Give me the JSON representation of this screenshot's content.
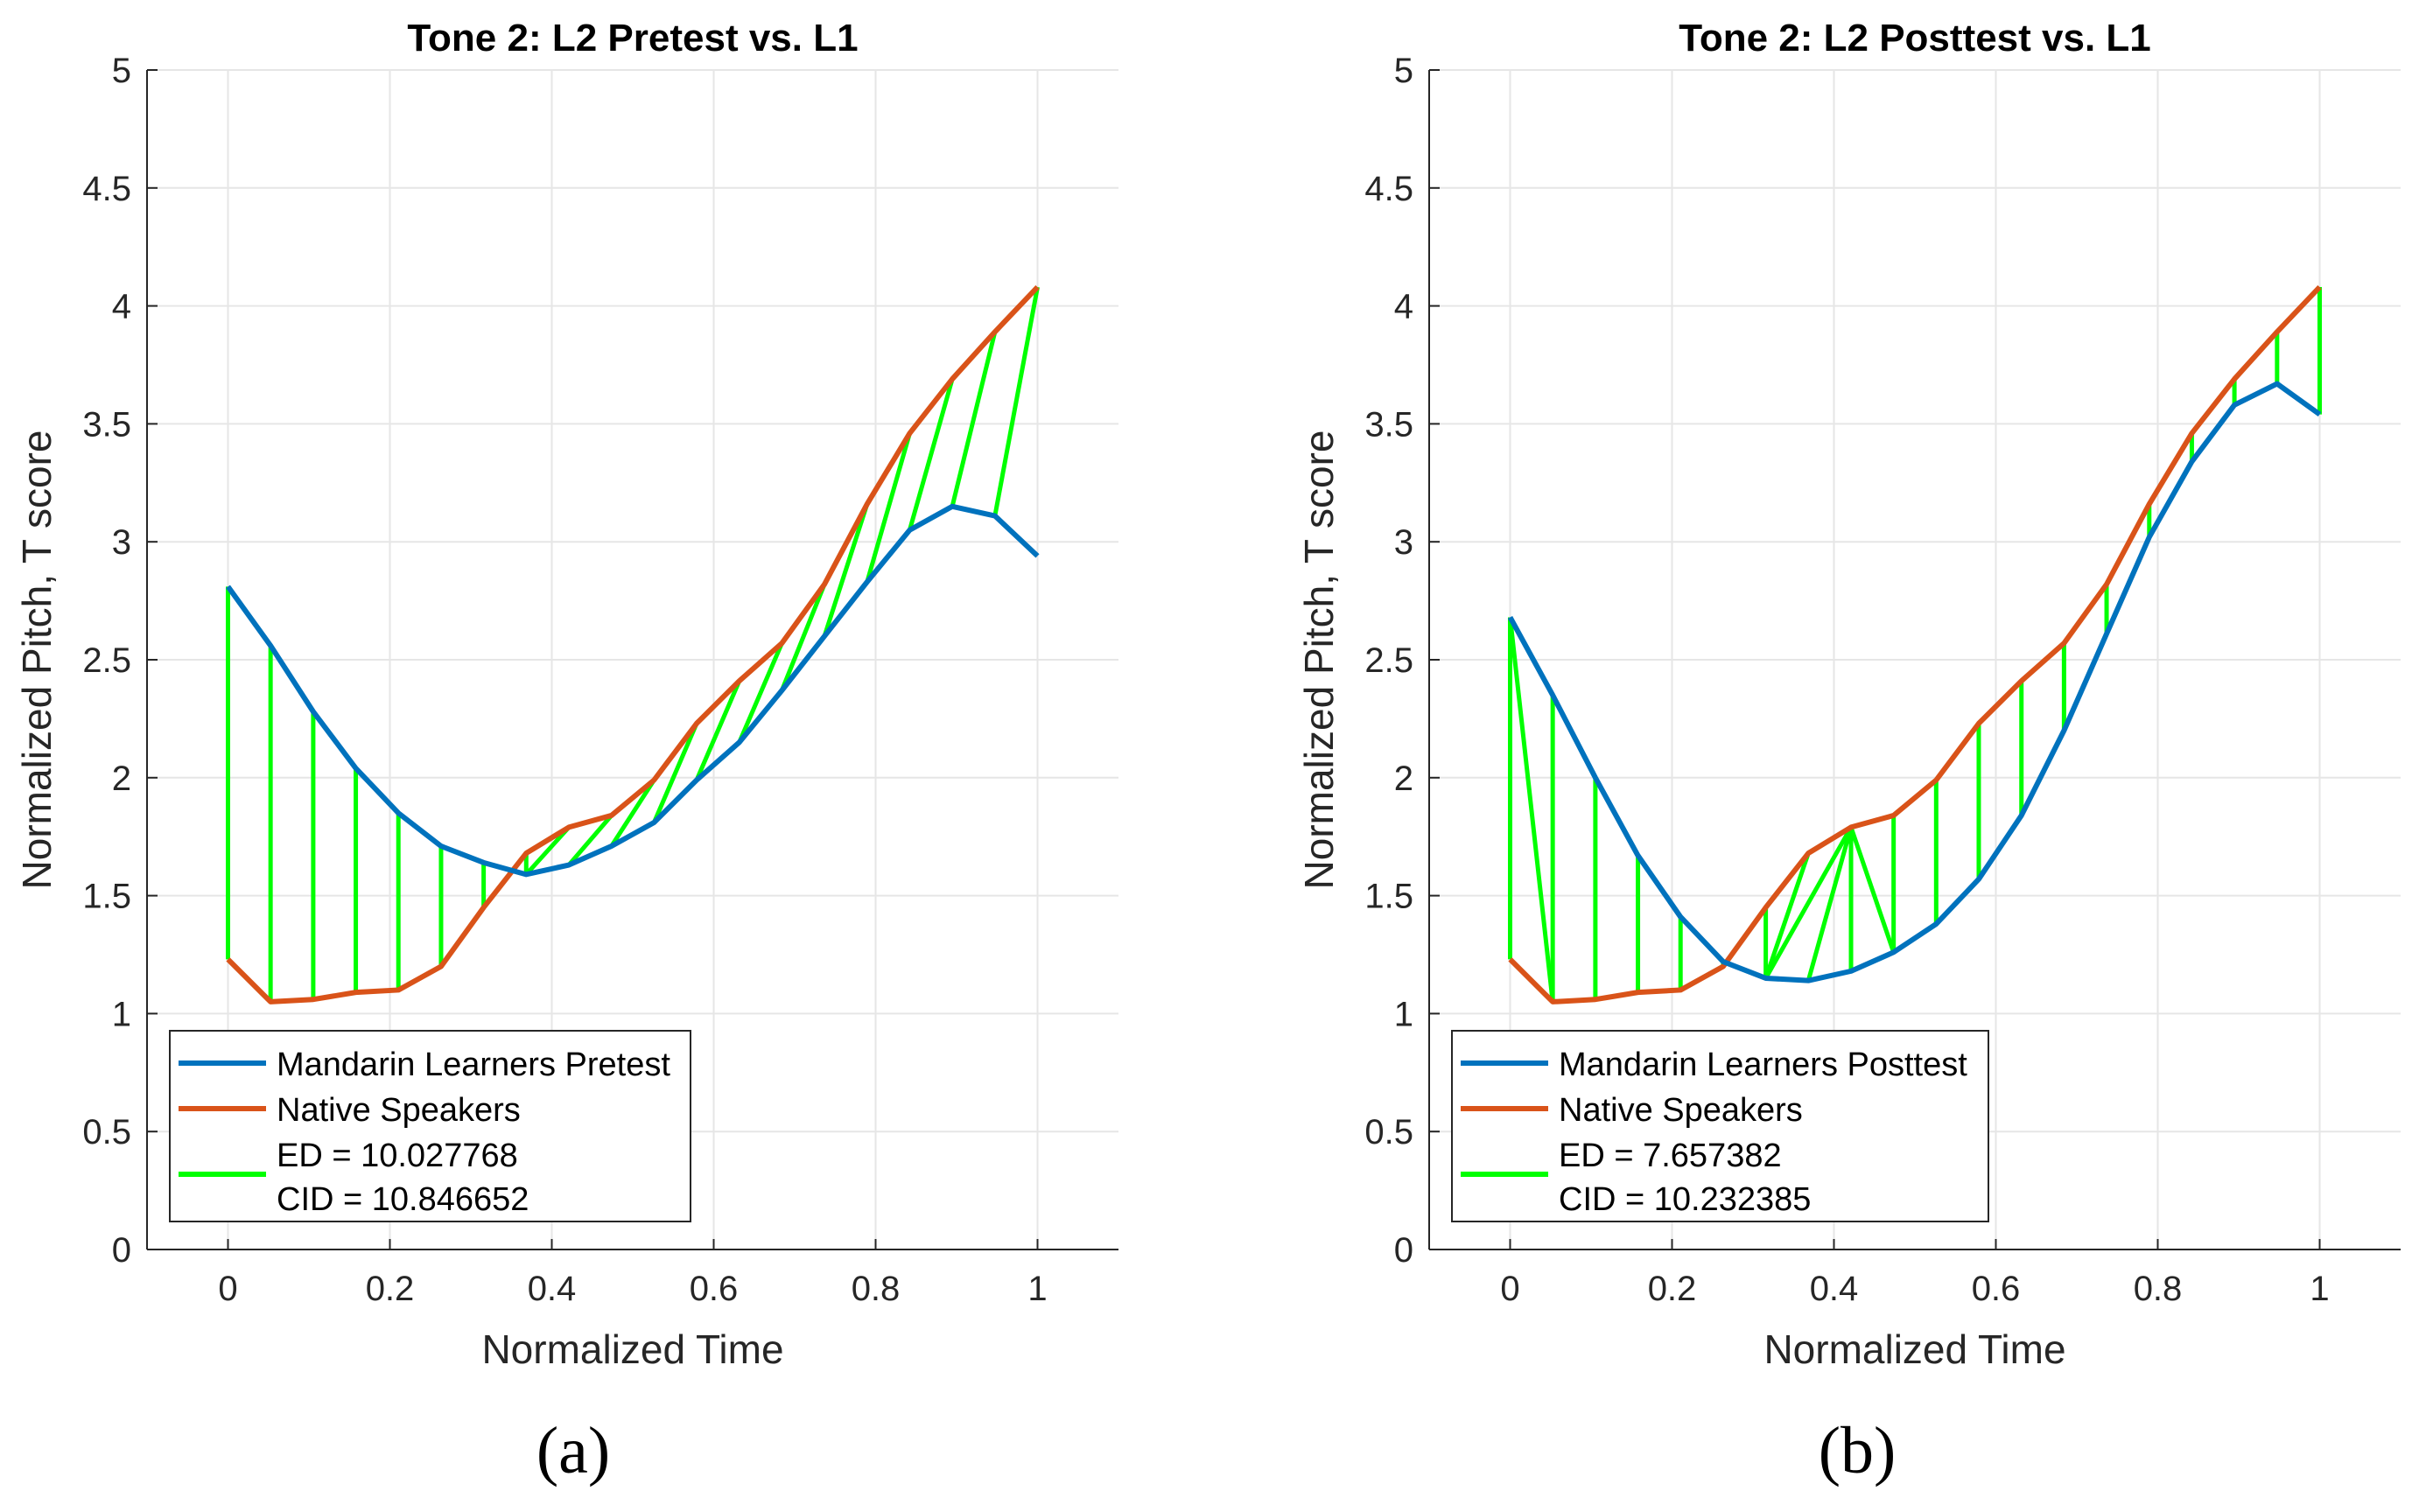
{
  "chart_data": [
    {
      "type": "line",
      "title": "Tone 2: L2 Pretest vs. L1",
      "xlabel": "Normalized Time",
      "ylabel": "Normalized Pitch, T score",
      "xlim": [
        -0.1,
        1.1
      ],
      "ylim": [
        0,
        5
      ],
      "xticks": [
        0,
        0.2,
        0.4,
        0.6,
        0.8,
        1
      ],
      "xtick_labels": [
        "0",
        "0.2",
        "0.4",
        "0.6",
        "0.8",
        "1"
      ],
      "yticks": [
        0,
        0.5,
        1,
        1.5,
        2,
        2.5,
        3,
        3.5,
        4,
        4.5,
        5
      ],
      "ytick_labels": [
        "0",
        "0.5",
        "1",
        "1.5",
        "2",
        "2.5",
        "3",
        "3.5",
        "4",
        "4.5",
        "5"
      ],
      "grid": true,
      "legend_position": "bottom-left",
      "series": [
        {
          "name": "Mandarin Learners Pretest",
          "color": "#0072BD",
          "x": [
            0,
            0.0526,
            0.1053,
            0.1579,
            0.2105,
            0.2632,
            0.3158,
            0.3684,
            0.4211,
            0.4737,
            0.5263,
            0.5789,
            0.6316,
            0.6842,
            0.7368,
            0.7895,
            0.8421,
            0.8947,
            0.9474,
            1
          ],
          "y": [
            2.81,
            2.56,
            2.28,
            2.04,
            1.85,
            1.71,
            1.64,
            1.59,
            1.63,
            1.71,
            1.81,
            1.99,
            2.15,
            2.37,
            2.6,
            2.83,
            3.05,
            3.15,
            3.11,
            2.94
          ]
        },
        {
          "name": "Native Speakers",
          "color": "#D95319",
          "x": [
            0,
            0.0526,
            0.1053,
            0.1579,
            0.2105,
            0.2632,
            0.3158,
            0.3684,
            0.4211,
            0.4737,
            0.5263,
            0.5789,
            0.6316,
            0.6842,
            0.7368,
            0.7895,
            0.8421,
            0.8947,
            0.9474,
            1
          ],
          "y": [
            1.23,
            1.05,
            1.06,
            1.09,
            1.1,
            1.2,
            1.45,
            1.68,
            1.79,
            1.84,
            1.99,
            2.23,
            2.41,
            2.57,
            2.82,
            3.16,
            3.46,
            3.69,
            3.89,
            4.08
          ]
        },
        {
          "name": "ED = 10.027768\nCID = 10.846652",
          "color": "#00FF00",
          "pairs": [
            [
              0,
              0
            ],
            [
              1,
              1
            ],
            [
              2,
              2
            ],
            [
              3,
              3
            ],
            [
              4,
              4
            ],
            [
              5,
              5
            ],
            [
              6,
              6
            ],
            [
              7,
              7
            ],
            [
              7,
              8
            ],
            [
              8,
              9
            ],
            [
              9,
              10
            ],
            [
              10,
              11
            ],
            [
              11,
              12
            ],
            [
              12,
              13
            ],
            [
              13,
              14
            ],
            [
              14,
              15
            ],
            [
              15,
              16
            ],
            [
              16,
              17
            ],
            [
              17,
              18
            ],
            [
              18,
              19
            ]
          ]
        }
      ],
      "legend": [
        "Mandarin Learners Pretest",
        "Native Speakers",
        "ED = 10.027768",
        "CID = 10.846652"
      ]
    },
    {
      "type": "line",
      "title": "Tone 2: L2 Posttest vs. L1",
      "xlabel": "Normalized Time",
      "ylabel": "Normalized Pitch, T score",
      "xlim": [
        -0.1,
        1.1
      ],
      "ylim": [
        0,
        5
      ],
      "xticks": [
        0,
        0.2,
        0.4,
        0.6,
        0.8,
        1
      ],
      "xtick_labels": [
        "0",
        "0.2",
        "0.4",
        "0.6",
        "0.8",
        "1"
      ],
      "yticks": [
        0,
        0.5,
        1,
        1.5,
        2,
        2.5,
        3,
        3.5,
        4,
        4.5,
        5
      ],
      "ytick_labels": [
        "0",
        "0.5",
        "1",
        "1.5",
        "2",
        "2.5",
        "3",
        "3.5",
        "4",
        "4.5",
        "5"
      ],
      "grid": true,
      "legend_position": "bottom-left",
      "series": [
        {
          "name": "Mandarin Learners Posttest",
          "color": "#0072BD",
          "x": [
            0,
            0.0526,
            0.1053,
            0.1579,
            0.2105,
            0.2632,
            0.3158,
            0.3684,
            0.4211,
            0.4737,
            0.5263,
            0.5789,
            0.6316,
            0.6842,
            0.7368,
            0.7895,
            0.8421,
            0.8947,
            0.9474,
            1
          ],
          "y": [
            2.68,
            2.35,
            2.0,
            1.67,
            1.41,
            1.22,
            1.15,
            1.14,
            1.18,
            1.26,
            1.38,
            1.57,
            1.84,
            2.2,
            2.61,
            3.02,
            3.34,
            3.58,
            3.67,
            3.54
          ]
        },
        {
          "name": "Native Speakers",
          "color": "#D95319",
          "x": [
            0,
            0.0526,
            0.1053,
            0.1579,
            0.2105,
            0.2632,
            0.3158,
            0.3684,
            0.4211,
            0.4737,
            0.5263,
            0.5789,
            0.6316,
            0.6842,
            0.7368,
            0.7895,
            0.8421,
            0.8947,
            0.9474,
            1
          ],
          "y": [
            1.23,
            1.05,
            1.06,
            1.09,
            1.1,
            1.2,
            1.45,
            1.68,
            1.79,
            1.84,
            1.99,
            2.23,
            2.41,
            2.57,
            2.82,
            3.16,
            3.46,
            3.69,
            3.89,
            4.08
          ]
        },
        {
          "name": "ED = 7.657382\nCID = 10.232385",
          "color": "#00FF00",
          "pairs": [
            [
              0,
              0
            ],
            [
              0,
              1
            ],
            [
              1,
              1
            ],
            [
              2,
              2
            ],
            [
              3,
              3
            ],
            [
              4,
              4
            ],
            [
              5,
              5
            ],
            [
              6,
              6
            ],
            [
              6,
              7
            ],
            [
              6,
              8
            ],
            [
              7,
              8
            ],
            [
              8,
              8
            ],
            [
              9,
              8
            ],
            [
              9,
              9
            ],
            [
              10,
              10
            ],
            [
              11,
              11
            ],
            [
              12,
              12
            ],
            [
              13,
              13
            ],
            [
              14,
              14
            ],
            [
              15,
              15
            ],
            [
              16,
              16
            ],
            [
              17,
              17
            ],
            [
              18,
              18
            ],
            [
              19,
              19
            ]
          ]
        }
      ],
      "legend": [
        "Mandarin Learners Posttest",
        "Native Speakers",
        "ED = 7.657382",
        "CID = 10.232385"
      ]
    }
  ],
  "panel_labels": [
    "(a)",
    "(b)"
  ]
}
